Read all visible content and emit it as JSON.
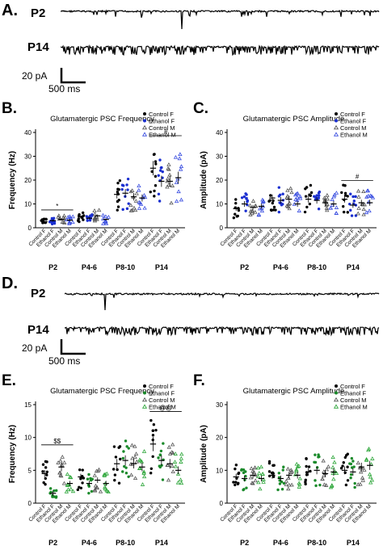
{
  "panels": {
    "A": {
      "letter": "A.",
      "traces": [
        "P2",
        "P14"
      ],
      "scale_current": "20 pA",
      "scale_time": "500 ms"
    },
    "D": {
      "letter": "D.",
      "traces": [
        "P2",
        "P14"
      ],
      "scale_current": "20 pA",
      "scale_time": "500 ms"
    }
  },
  "chart_data": [
    {
      "panel_letter": "B.",
      "type": "scatter",
      "title": "Glutamatergic PSC Frequency",
      "ylabel": "Frequency (Hz)",
      "ylim": [
        0,
        40
      ],
      "yticks": [
        0,
        10,
        20,
        30,
        40
      ],
      "groups": [
        "P2",
        "P4-6",
        "P8-10",
        "P14"
      ],
      "conditions": [
        "Control F",
        "Ethanol F",
        "Control M",
        "Ethanol M"
      ],
      "colors": {
        "Control F": "#000000",
        "Ethanol F": "#1a2fd0",
        "Control M": "#555555",
        "Ethanol M": "#3b4fe0"
      },
      "means": [
        [
          2.5,
          3.0,
          3.5,
          3.2
        ],
        [
          4.5,
          4.0,
          5.0,
          3.5
        ],
        [
          14.0,
          14.5,
          13.0,
          12.5
        ],
        [
          25.0,
          19.5,
          19.5,
          21.0
        ]
      ],
      "annotations": [
        {
          "group": "P2",
          "text": "*"
        },
        {
          "group": "P14",
          "text": "#"
        }
      ]
    },
    {
      "panel_letter": "C.",
      "type": "scatter",
      "title": "Glutamatergic PSC Amplitude",
      "ylabel": "Amplitude (pA)",
      "ylim": [
        0,
        40
      ],
      "yticks": [
        0,
        10,
        20,
        30,
        40
      ],
      "groups": [
        "P2",
        "P4-6",
        "P8-10",
        "P14"
      ],
      "conditions": [
        "Control F",
        "Ethanol F",
        "Control M",
        "Ethanol M"
      ],
      "colors": {
        "Control F": "#000000",
        "Ethanol F": "#1a2fd0",
        "Control M": "#555555",
        "Ethanol M": "#3b4fe0"
      },
      "means": [
        [
          8.0,
          10.0,
          8.5,
          9.0
        ],
        [
          12.5,
          11.5,
          12.0,
          10.0
        ],
        [
          12.0,
          11.5,
          10.5,
          10.0
        ],
        [
          12.0,
          9.5,
          10.5,
          10.5
        ]
      ],
      "annotations": [
        {
          "group": "P14",
          "text": "#"
        }
      ]
    },
    {
      "panel_letter": "E.",
      "type": "scatter",
      "title": "Glutamatergic PSC Frequency",
      "ylabel": "Frequency (Hz)",
      "ylim": [
        0,
        15
      ],
      "yticks": [
        0,
        5,
        10,
        15
      ],
      "groups": [
        "P2",
        "P4-6",
        "P8-10",
        "P14"
      ],
      "conditions": [
        "Control F",
        "Ethanol F",
        "Control M",
        "Ethanol M"
      ],
      "colors": {
        "Control F": "#000000",
        "Ethanol F": "#1a8a2a",
        "Control M": "#555555",
        "Ethanol M": "#2da63a"
      },
      "means": [
        [
          4.5,
          1.5,
          5.5,
          3.0
        ],
        [
          4.0,
          3.0,
          3.5,
          3.0
        ],
        [
          6.0,
          6.5,
          6.0,
          5.5
        ],
        [
          9.0,
          6.5,
          6.0,
          5.0
        ]
      ],
      "annotations": [
        {
          "group": "P2",
          "text": "$$"
        },
        {
          "group": "P14",
          "text": "@@"
        }
      ]
    },
    {
      "panel_letter": "F.",
      "type": "scatter",
      "title": "Glutamatergic PSC Amplitude",
      "ylabel": "Amplitude (pA)",
      "ylim": [
        0,
        30
      ],
      "yticks": [
        0,
        10,
        20,
        30
      ],
      "groups": [
        "P2",
        "P4-6",
        "P8-10",
        "P14"
      ],
      "conditions": [
        "Control F",
        "Ethanol F",
        "Control M",
        "Ethanol M"
      ],
      "colors": {
        "Control F": "#000000",
        "Ethanol F": "#1a8a2a",
        "Control M": "#555555",
        "Ethanol M": "#2da63a"
      },
      "means": [
        [
          8.0,
          7.5,
          8.5,
          7.5
        ],
        [
          8.5,
          7.5,
          8.5,
          8.5
        ],
        [
          9.5,
          10.0,
          9.0,
          9.5
        ],
        [
          10.0,
          9.5,
          11.0,
          11.5
        ]
      ],
      "annotations": []
    }
  ]
}
